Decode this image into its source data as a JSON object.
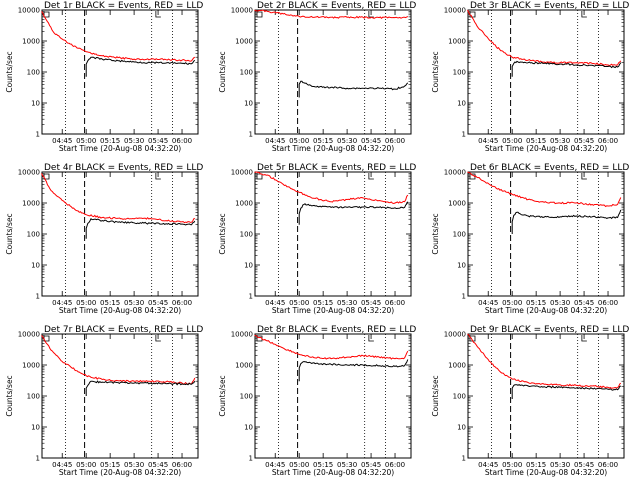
{
  "chart_data": [
    {
      "type": "line",
      "title": "Det 1r BLACK = Events, RED = LLD",
      "xlabel": "Start Time (20-Aug-08 04:32:20)",
      "ylabel": "Counts/sec",
      "log_y": true,
      "ylim": [
        1,
        10000
      ],
      "xlim": [
        "04:32:20",
        "06:10:00"
      ],
      "x_ticks": [
        "04:45",
        "05:00",
        "05:15",
        "05:30",
        "05:45",
        "06:00"
      ],
      "y_ticks": [
        "1",
        "10",
        "100",
        "1000",
        "10000"
      ],
      "vlines": [
        {
          "time": "04:47",
          "style": "dotted"
        },
        {
          "time": "04:59",
          "style": "dashed"
        },
        {
          "time": "05:41",
          "style": "dotted"
        },
        {
          "time": "05:54",
          "style": "dotted"
        }
      ],
      "series": [
        {
          "color": "#ff0000",
          "x": [
            "04:32",
            "04:40",
            "04:45",
            "04:50",
            "04:55",
            "05:00",
            "05:10",
            "05:20",
            "05:30",
            "05:40",
            "05:50",
            "06:00",
            "06:06",
            "06:08"
          ],
          "y": [
            9000,
            1800,
            1150,
            800,
            580,
            450,
            330,
            290,
            260,
            255,
            250,
            240,
            230,
            300
          ]
        },
        {
          "color": "#000000",
          "x": [
            "05:00",
            "05:00",
            "05:01",
            "05:03",
            "05:05",
            "05:10",
            "05:20",
            "05:30",
            "05:40",
            "05:50",
            "06:00",
            "06:06",
            "06:08"
          ],
          "y": [
            70,
            180,
            230,
            300,
            290,
            260,
            230,
            210,
            200,
            195,
            190,
            185,
            240
          ]
        }
      ]
    },
    {
      "type": "line",
      "title": "Det 2r BLACK = Events, RED = LLD",
      "xlabel": "Start Time (20-Aug-08 04:32:20)",
      "ylabel": "Counts/sec",
      "log_y": true,
      "ylim": [
        1,
        10000
      ],
      "xlim": [
        "04:32:20",
        "06:10:00"
      ],
      "x_ticks": [
        "04:45",
        "05:00",
        "05:15",
        "05:30",
        "05:45",
        "06:00"
      ],
      "y_ticks": [
        "1",
        "10",
        "100",
        "1000",
        "10000"
      ],
      "vlines": [
        {
          "time": "04:47",
          "style": "dotted"
        },
        {
          "time": "04:59",
          "style": "dashed"
        },
        {
          "time": "05:41",
          "style": "dotted"
        },
        {
          "time": "05:54",
          "style": "dotted"
        }
      ],
      "series": [
        {
          "color": "#ff0000",
          "x": [
            "04:32",
            "04:40",
            "04:50",
            "05:00",
            "05:10",
            "05:20",
            "05:30",
            "05:40",
            "05:50",
            "06:00",
            "06:06",
            "06:08"
          ],
          "y": [
            10000,
            9000,
            7500,
            6200,
            5900,
            5800,
            5800,
            5800,
            5700,
            5700,
            5800,
            6200
          ]
        },
        {
          "color": "#000000",
          "x": [
            "05:00",
            "05:00",
            "05:01",
            "05:03",
            "05:05",
            "05:10",
            "05:20",
            "05:30",
            "05:40",
            "05:50",
            "06:00",
            "06:06",
            "06:08"
          ],
          "y": [
            15,
            40,
            50,
            45,
            40,
            33,
            32,
            30,
            30,
            30,
            28,
            35,
            45
          ]
        }
      ]
    },
    {
      "type": "line",
      "title": "Det 3r BLACK = Events, RED = LLD",
      "xlabel": "Start Time (20-Aug-08 04:32:20)",
      "ylabel": "Counts/sec",
      "log_y": true,
      "ylim": [
        1,
        10000
      ],
      "xlim": [
        "04:32:20",
        "06:10:00"
      ],
      "x_ticks": [
        "04:45",
        "05:00",
        "05:15",
        "05:30",
        "05:45",
        "06:00"
      ],
      "y_ticks": [
        "1",
        "10",
        "100",
        "1000",
        "10000"
      ],
      "vlines": [
        {
          "time": "04:47",
          "style": "dotted"
        },
        {
          "time": "04:59",
          "style": "dashed"
        },
        {
          "time": "05:41",
          "style": "dotted"
        },
        {
          "time": "05:54",
          "style": "dotted"
        }
      ],
      "series": [
        {
          "color": "#ff0000",
          "x": [
            "04:32",
            "04:38",
            "04:45",
            "04:50",
            "04:55",
            "05:00",
            "05:10",
            "05:20",
            "05:30",
            "05:40",
            "05:50",
            "06:00",
            "06:06",
            "06:08"
          ],
          "y": [
            10000,
            3000,
            1200,
            650,
            420,
            300,
            240,
            210,
            200,
            200,
            190,
            170,
            170,
            230
          ]
        },
        {
          "color": "#000000",
          "x": [
            "05:00",
            "05:00",
            "05:01",
            "05:03",
            "05:05",
            "05:10",
            "05:20",
            "05:30",
            "05:40",
            "05:50",
            "06:00",
            "06:06",
            "06:08"
          ],
          "y": [
            70,
            150,
            190,
            220,
            210,
            200,
            190,
            180,
            170,
            165,
            150,
            145,
            200
          ]
        }
      ]
    },
    {
      "type": "line",
      "title": "Det 4r BLACK = Events, RED = LLD",
      "xlabel": "Start Time (20-Aug-08 04:32:20)",
      "ylabel": "Counts/sec",
      "log_y": true,
      "ylim": [
        1,
        10000
      ],
      "xlim": [
        "04:32:20",
        "06:10:00"
      ],
      "x_ticks": [
        "04:45",
        "05:00",
        "05:15",
        "05:30",
        "05:45",
        "06:00"
      ],
      "y_ticks": [
        "1",
        "10",
        "100",
        "1000",
        "10000"
      ],
      "vlines": [
        {
          "time": "04:47",
          "style": "dotted"
        },
        {
          "time": "04:59",
          "style": "dashed"
        },
        {
          "time": "05:41",
          "style": "dotted"
        },
        {
          "time": "05:54",
          "style": "dotted"
        }
      ],
      "series": [
        {
          "color": "#ff0000",
          "x": [
            "04:32",
            "04:38",
            "04:45",
            "04:50",
            "04:55",
            "05:00",
            "05:10",
            "05:20",
            "05:30",
            "05:40",
            "05:50",
            "06:00",
            "06:06",
            "06:08"
          ],
          "y": [
            9000,
            2500,
            1200,
            800,
            550,
            420,
            340,
            320,
            310,
            320,
            270,
            250,
            240,
            320
          ]
        },
        {
          "color": "#000000",
          "x": [
            "05:00",
            "05:00",
            "05:01",
            "05:03",
            "05:05",
            "05:10",
            "05:20",
            "05:30",
            "05:40",
            "05:50",
            "06:00",
            "06:06",
            "06:08"
          ],
          "y": [
            70,
            150,
            220,
            310,
            300,
            270,
            240,
            230,
            220,
            215,
            210,
            200,
            260
          ]
        }
      ]
    },
    {
      "type": "line",
      "title": "Det 5r BLACK = Events, RED = LLD",
      "xlabel": "Start Time (20-Aug-08 04:32:20)",
      "ylabel": "Counts/sec",
      "log_y": true,
      "ylim": [
        1,
        10000
      ],
      "xlim": [
        "04:32:20",
        "06:10:00"
      ],
      "x_ticks": [
        "04:45",
        "05:00",
        "05:15",
        "05:30",
        "05:45",
        "06:00"
      ],
      "y_ticks": [
        "1",
        "10",
        "100",
        "1000",
        "10000"
      ],
      "vlines": [
        {
          "time": "04:47",
          "style": "dotted"
        },
        {
          "time": "04:59",
          "style": "dashed"
        },
        {
          "time": "05:41",
          "style": "dotted"
        },
        {
          "time": "05:54",
          "style": "dotted"
        }
      ],
      "series": [
        {
          "color": "#ff0000",
          "x": [
            "04:32",
            "04:40",
            "04:50",
            "05:00",
            "05:10",
            "05:20",
            "05:30",
            "05:40",
            "05:50",
            "06:00",
            "06:06",
            "06:08"
          ],
          "y": [
            10000,
            8000,
            4000,
            2200,
            1400,
            1100,
            1300,
            1450,
            1200,
            1000,
            1100,
            1800
          ]
        },
        {
          "color": "#000000",
          "x": [
            "05:00",
            "05:00",
            "05:01",
            "05:03",
            "05:05",
            "05:10",
            "05:20",
            "05:30",
            "05:40",
            "05:50",
            "06:00",
            "06:06",
            "06:08"
          ],
          "y": [
            200,
            450,
            680,
            900,
            870,
            800,
            720,
            720,
            740,
            720,
            700,
            720,
            1100
          ]
        }
      ]
    },
    {
      "type": "line",
      "title": "Det 6r BLACK = Events, RED = LLD",
      "xlabel": "Start Time (20-Aug-08 04:32:20)",
      "ylabel": "Counts/sec",
      "log_y": true,
      "ylim": [
        1,
        10000
      ],
      "xlim": [
        "04:32:20",
        "06:10:00"
      ],
      "x_ticks": [
        "04:45",
        "05:00",
        "05:15",
        "05:30",
        "05:45",
        "06:00"
      ],
      "y_ticks": [
        "1",
        "10",
        "100",
        "1000",
        "10000"
      ],
      "vlines": [
        {
          "time": "04:47",
          "style": "dotted"
        },
        {
          "time": "04:59",
          "style": "dashed"
        },
        {
          "time": "05:41",
          "style": "dotted"
        },
        {
          "time": "05:54",
          "style": "dotted"
        }
      ],
      "series": [
        {
          "color": "#ff0000",
          "x": [
            "04:32",
            "04:40",
            "04:50",
            "05:00",
            "05:10",
            "05:20",
            "05:30",
            "05:40",
            "05:50",
            "06:00",
            "06:06",
            "06:08"
          ],
          "y": [
            10000,
            6000,
            3000,
            1900,
            1300,
            1050,
            1000,
            1000,
            900,
            800,
            900,
            1500
          ]
        },
        {
          "color": "#000000",
          "x": [
            "05:00",
            "05:00",
            "05:01",
            "05:03",
            "05:05",
            "05:10",
            "05:20",
            "05:30",
            "05:40",
            "05:50",
            "06:00",
            "06:06",
            "06:08"
          ],
          "y": [
            100,
            250,
            400,
            500,
            450,
            380,
            350,
            360,
            380,
            360,
            330,
            340,
            600
          ]
        }
      ]
    },
    {
      "type": "line",
      "title": "Det 7r BLACK = Events, RED = LLD",
      "xlabel": "Start Time (20-Aug-08 04:32:20)",
      "ylabel": "Counts/sec",
      "log_y": true,
      "ylim": [
        1,
        10000
      ],
      "xlim": [
        "04:32:20",
        "06:10:00"
      ],
      "x_ticks": [
        "04:45",
        "05:00",
        "05:15",
        "05:30",
        "05:45",
        "06:00"
      ],
      "y_ticks": [
        "1",
        "10",
        "100",
        "1000",
        "10000"
      ],
      "vlines": [
        {
          "time": "04:47",
          "style": "dotted"
        },
        {
          "time": "04:59",
          "style": "dashed"
        },
        {
          "time": "05:41",
          "style": "dotted"
        },
        {
          "time": "05:54",
          "style": "dotted"
        }
      ],
      "series": [
        {
          "color": "#ff0000",
          "x": [
            "04:32",
            "04:38",
            "04:45",
            "04:50",
            "04:55",
            "05:00",
            "05:10",
            "05:20",
            "05:30",
            "05:40",
            "05:50",
            "06:00",
            "06:06",
            "06:08"
          ],
          "y": [
            9000,
            3000,
            1300,
            900,
            600,
            450,
            340,
            310,
            300,
            300,
            290,
            260,
            250,
            380
          ]
        },
        {
          "color": "#000000",
          "x": [
            "05:00",
            "05:00",
            "05:01",
            "05:03",
            "05:05",
            "05:10",
            "05:20",
            "05:30",
            "05:40",
            "05:50",
            "06:00",
            "06:06",
            "06:08"
          ],
          "y": [
            100,
            180,
            220,
            300,
            290,
            280,
            270,
            260,
            260,
            250,
            245,
            240,
            300
          ]
        }
      ]
    },
    {
      "type": "line",
      "title": "Det 8r BLACK = Events, RED = LLD",
      "xlabel": "Start Time (20-Aug-08 04:32:20)",
      "ylabel": "Counts/sec",
      "log_y": true,
      "ylim": [
        1,
        10000
      ],
      "xlim": [
        "04:32:20",
        "06:10:00"
      ],
      "x_ticks": [
        "04:45",
        "05:00",
        "05:15",
        "05:30",
        "05:45",
        "06:00"
      ],
      "y_ticks": [
        "1",
        "10",
        "100",
        "1000",
        "10000"
      ],
      "vlines": [
        {
          "time": "04:47",
          "style": "dotted"
        },
        {
          "time": "04:59",
          "style": "dashed"
        },
        {
          "time": "05:41",
          "style": "dotted"
        },
        {
          "time": "05:54",
          "style": "dotted"
        }
      ],
      "series": [
        {
          "color": "#ff0000",
          "x": [
            "04:32",
            "04:40",
            "04:50",
            "05:00",
            "05:10",
            "05:20",
            "05:30",
            "05:40",
            "05:50",
            "06:00",
            "06:06",
            "06:08"
          ],
          "y": [
            9000,
            6000,
            3500,
            2200,
            1700,
            1600,
            1800,
            2000,
            1800,
            1600,
            1700,
            2800
          ]
        },
        {
          "color": "#000000",
          "x": [
            "05:00",
            "05:00",
            "05:01",
            "05:03",
            "05:05",
            "05:10",
            "05:20",
            "05:30",
            "05:40",
            "05:50",
            "06:00",
            "06:06",
            "06:08"
          ],
          "y": [
            300,
            800,
            1100,
            1300,
            1200,
            1100,
            1050,
            1000,
            1000,
            950,
            900,
            950,
            1500
          ]
        }
      ]
    },
    {
      "type": "line",
      "title": "Det 9r BLACK = Events, RED = LLD",
      "xlabel": "Start Time (20-Aug-08 04:32:20)",
      "ylabel": "Counts/sec",
      "log_y": true,
      "ylim": [
        1,
        10000
      ],
      "xlim": [
        "04:32:20",
        "06:10:00"
      ],
      "x_ticks": [
        "04:45",
        "05:00",
        "05:15",
        "05:30",
        "05:45",
        "06:00"
      ],
      "y_ticks": [
        "1",
        "10",
        "100",
        "1000",
        "10000"
      ],
      "vlines": [
        {
          "time": "04:47",
          "style": "dotted"
        },
        {
          "time": "04:59",
          "style": "dashed"
        },
        {
          "time": "05:41",
          "style": "dotted"
        },
        {
          "time": "05:54",
          "style": "dotted"
        }
      ],
      "series": [
        {
          "color": "#ff0000",
          "x": [
            "04:32",
            "04:38",
            "04:45",
            "04:50",
            "04:55",
            "05:00",
            "05:10",
            "05:20",
            "05:30",
            "05:40",
            "05:50",
            "06:00",
            "06:06",
            "06:08"
          ],
          "y": [
            10000,
            4000,
            1500,
            800,
            500,
            350,
            270,
            240,
            230,
            220,
            210,
            190,
            185,
            260
          ]
        },
        {
          "color": "#000000",
          "x": [
            "05:00",
            "05:00",
            "05:01",
            "05:03",
            "05:05",
            "05:10",
            "05:20",
            "05:30",
            "05:40",
            "05:50",
            "06:00",
            "06:06",
            "06:08"
          ],
          "y": [
            80,
            180,
            220,
            230,
            220,
            210,
            200,
            190,
            180,
            175,
            165,
            160,
            210
          ]
        }
      ]
    }
  ]
}
